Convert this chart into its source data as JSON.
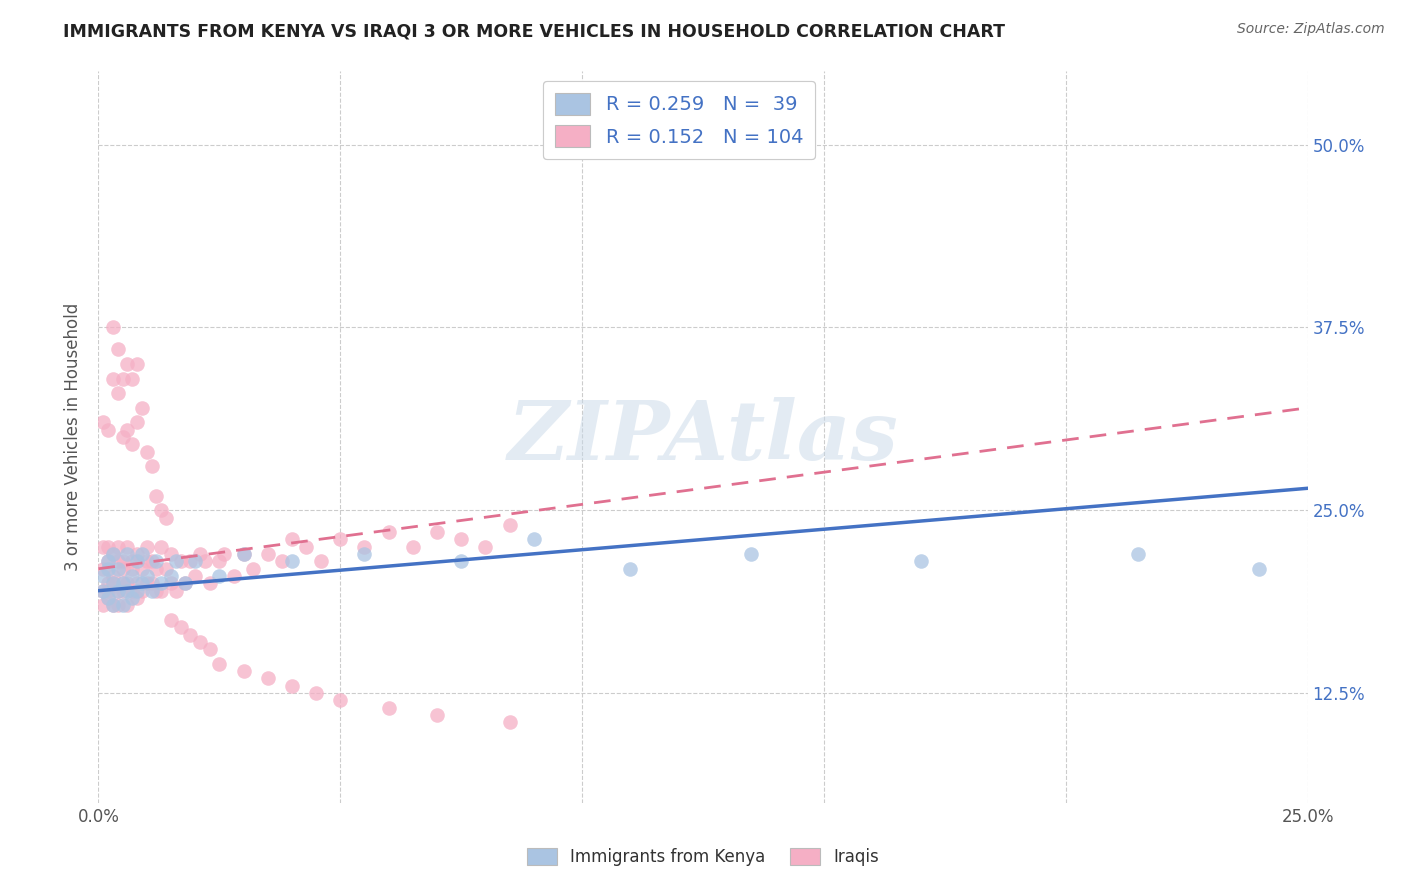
{
  "title": "IMMIGRANTS FROM KENYA VS IRAQI 3 OR MORE VEHICLES IN HOUSEHOLD CORRELATION CHART",
  "source": "Source: ZipAtlas.com",
  "ylabel": "3 or more Vehicles in Household",
  "xlim": [
    0.0,
    0.25
  ],
  "ylim": [
    0.05,
    0.55
  ],
  "legend_label1": "Immigrants from Kenya",
  "legend_label2": "Iraqis",
  "r1": 0.259,
  "n1": 39,
  "r2": 0.152,
  "n2": 104,
  "color1": "#aac4e2",
  "color2": "#f5afc5",
  "line_color1": "#4472c4",
  "line_color2": "#e07090",
  "kenya_x": [
    0.001,
    0.001,
    0.002,
    0.002,
    0.002,
    0.003,
    0.003,
    0.003,
    0.004,
    0.004,
    0.005,
    0.005,
    0.006,
    0.006,
    0.007,
    0.007,
    0.008,
    0.008,
    0.009,
    0.009,
    0.01,
    0.011,
    0.012,
    0.013,
    0.015,
    0.016,
    0.018,
    0.02,
    0.025,
    0.03,
    0.04,
    0.055,
    0.075,
    0.09,
    0.11,
    0.135,
    0.17,
    0.215,
    0.24
  ],
  "kenya_y": [
    0.205,
    0.195,
    0.21,
    0.19,
    0.215,
    0.2,
    0.185,
    0.22,
    0.195,
    0.21,
    0.2,
    0.185,
    0.22,
    0.195,
    0.205,
    0.19,
    0.215,
    0.195,
    0.2,
    0.22,
    0.205,
    0.195,
    0.215,
    0.2,
    0.205,
    0.215,
    0.2,
    0.215,
    0.205,
    0.22,
    0.215,
    0.22,
    0.215,
    0.23,
    0.21,
    0.22,
    0.215,
    0.22,
    0.21
  ],
  "iraqi_x": [
    0.001,
    0.001,
    0.001,
    0.001,
    0.002,
    0.002,
    0.002,
    0.002,
    0.002,
    0.003,
    0.003,
    0.003,
    0.003,
    0.004,
    0.004,
    0.004,
    0.004,
    0.005,
    0.005,
    0.005,
    0.005,
    0.006,
    0.006,
    0.006,
    0.007,
    0.007,
    0.007,
    0.008,
    0.008,
    0.008,
    0.009,
    0.009,
    0.01,
    0.01,
    0.01,
    0.011,
    0.011,
    0.012,
    0.012,
    0.013,
    0.013,
    0.014,
    0.015,
    0.015,
    0.016,
    0.017,
    0.018,
    0.019,
    0.02,
    0.021,
    0.022,
    0.023,
    0.025,
    0.026,
    0.028,
    0.03,
    0.032,
    0.035,
    0.038,
    0.04,
    0.043,
    0.046,
    0.05,
    0.055,
    0.06,
    0.065,
    0.07,
    0.075,
    0.08,
    0.085,
    0.001,
    0.002,
    0.003,
    0.003,
    0.004,
    0.004,
    0.005,
    0.005,
    0.006,
    0.006,
    0.007,
    0.007,
    0.008,
    0.008,
    0.009,
    0.01,
    0.011,
    0.012,
    0.013,
    0.014,
    0.015,
    0.017,
    0.019,
    0.021,
    0.023,
    0.025,
    0.03,
    0.035,
    0.04,
    0.045,
    0.05,
    0.06,
    0.07,
    0.085
  ],
  "iraqi_y": [
    0.195,
    0.21,
    0.225,
    0.185,
    0.2,
    0.215,
    0.19,
    0.225,
    0.195,
    0.205,
    0.22,
    0.185,
    0.2,
    0.215,
    0.195,
    0.225,
    0.185,
    0.2,
    0.215,
    0.195,
    0.21,
    0.225,
    0.185,
    0.2,
    0.215,
    0.195,
    0.21,
    0.2,
    0.22,
    0.19,
    0.21,
    0.195,
    0.215,
    0.2,
    0.225,
    0.2,
    0.215,
    0.195,
    0.21,
    0.225,
    0.195,
    0.21,
    0.2,
    0.22,
    0.195,
    0.215,
    0.2,
    0.215,
    0.205,
    0.22,
    0.215,
    0.2,
    0.215,
    0.22,
    0.205,
    0.22,
    0.21,
    0.22,
    0.215,
    0.23,
    0.225,
    0.215,
    0.23,
    0.225,
    0.235,
    0.225,
    0.235,
    0.23,
    0.225,
    0.24,
    0.31,
    0.305,
    0.34,
    0.375,
    0.33,
    0.36,
    0.3,
    0.34,
    0.305,
    0.35,
    0.295,
    0.34,
    0.31,
    0.35,
    0.32,
    0.29,
    0.28,
    0.26,
    0.25,
    0.245,
    0.175,
    0.17,
    0.165,
    0.16,
    0.155,
    0.145,
    0.14,
    0.135,
    0.13,
    0.125,
    0.12,
    0.115,
    0.11,
    0.105
  ]
}
